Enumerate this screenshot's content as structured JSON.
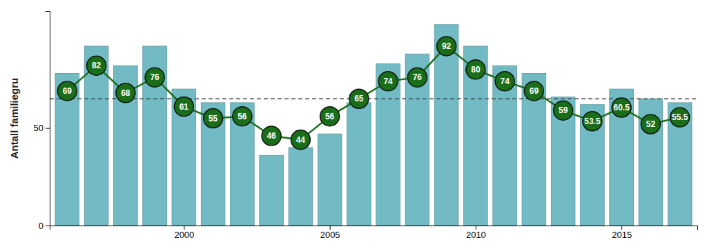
{
  "chart_data": {
    "type": "bar",
    "y_label": "Antall familiegru",
    "x": [
      1996,
      1997,
      1998,
      1999,
      2000,
      2001,
      2002,
      2003,
      2004,
      2005,
      2006,
      2007,
      2008,
      2009,
      2010,
      2011,
      2012,
      2013,
      2014,
      2015,
      2016,
      2017
    ],
    "xlim": [
      1995.4,
      2017.6
    ],
    "xticks": [
      2000,
      2005,
      2010,
      2015
    ],
    "ylim": [
      0,
      110
    ],
    "yticks": [
      0,
      50
    ],
    "series": [
      {
        "type": "bar",
        "color": "#72bbc4",
        "values": [
          78,
          92,
          82,
          92,
          70,
          63,
          63,
          36,
          40,
          47,
          63,
          83,
          88,
          103,
          92,
          82,
          78,
          66,
          62,
          70,
          65,
          63
        ]
      },
      {
        "type": "line",
        "color": "#1a6e1a",
        "marker": "circle",
        "data_labels": true,
        "values": [
          69,
          82,
          68,
          76,
          61,
          55,
          56,
          46,
          44,
          56,
          65,
          74,
          76,
          92,
          80,
          74,
          69,
          59,
          53.5,
          60.5,
          52,
          55.5
        ]
      }
    ],
    "reference_line": {
      "value": 65,
      "color": "#444444",
      "line_style": "dashed"
    }
  }
}
